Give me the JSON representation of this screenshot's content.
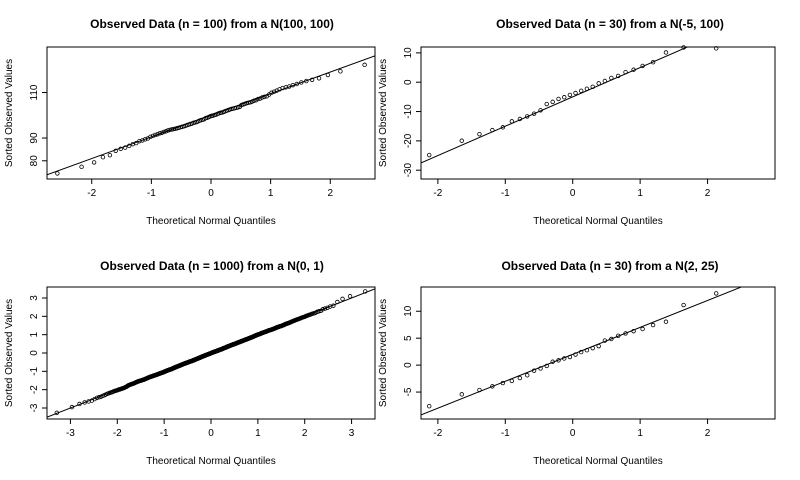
{
  "chart_data": [
    {
      "type": "scatter",
      "title": "Observed Data (n = 100) from a N(100, 100)",
      "xlabel": "Theoretical Normal Quantiles",
      "ylabel": "Sorted Observed Values",
      "xlim": [
        -2.75,
        2.75
      ],
      "ylim": [
        72,
        130
      ],
      "xticks": [
        -2,
        -1,
        0,
        1,
        2
      ],
      "yticks": [
        80,
        90,
        110
      ],
      "n": 100,
      "mean": 100,
      "sd": 9.5,
      "line": {
        "intercept": 100,
        "slope": 9.5
      }
    },
    {
      "type": "scatter",
      "title": "Observed Data (n = 30) from a N(-5, 100)",
      "xlabel": "Theoretical Normal Quantiles",
      "ylabel": "Sorted Observed Values",
      "xlim": [
        -2.25,
        3.0
      ],
      "ylim": [
        -33,
        12
      ],
      "xticks": [
        -2,
        -1,
        0,
        1,
        2
      ],
      "yticks": [
        -30,
        -20,
        -10,
        0,
        10
      ],
      "n": 30,
      "mean": -5,
      "sd": 10,
      "line": {
        "intercept": -5,
        "slope": 10
      }
    },
    {
      "type": "scatter",
      "title": "Observed Data (n = 1000) from a N(0, 1)",
      "xlabel": "Theoretical Normal Quantiles",
      "ylabel": "Sorted Observed Values",
      "xlim": [
        -3.5,
        3.5
      ],
      "ylim": [
        -3.6,
        3.6
      ],
      "xticks": [
        -3,
        -2,
        -1,
        0,
        1,
        2,
        3
      ],
      "yticks": [
        -3,
        -2,
        -1,
        0,
        1,
        2,
        3
      ],
      "n": 1000,
      "mean": 0,
      "sd": 1,
      "line": {
        "intercept": 0,
        "slope": 1
      }
    },
    {
      "type": "scatter",
      "title": "Observed Data (n = 30) from a N(2, 25)",
      "xlabel": "Theoretical Normal Quantiles",
      "ylabel": "Sorted Observed Values",
      "xlim": [
        -2.25,
        3.0
      ],
      "ylim": [
        -10,
        14.5
      ],
      "xticks": [
        -2,
        -1,
        0,
        1,
        2
      ],
      "yticks": [
        -5,
        0,
        5,
        10
      ],
      "n": 30,
      "mean": 2,
      "sd": 5,
      "line": {
        "intercept": 2,
        "slope": 5
      }
    }
  ]
}
